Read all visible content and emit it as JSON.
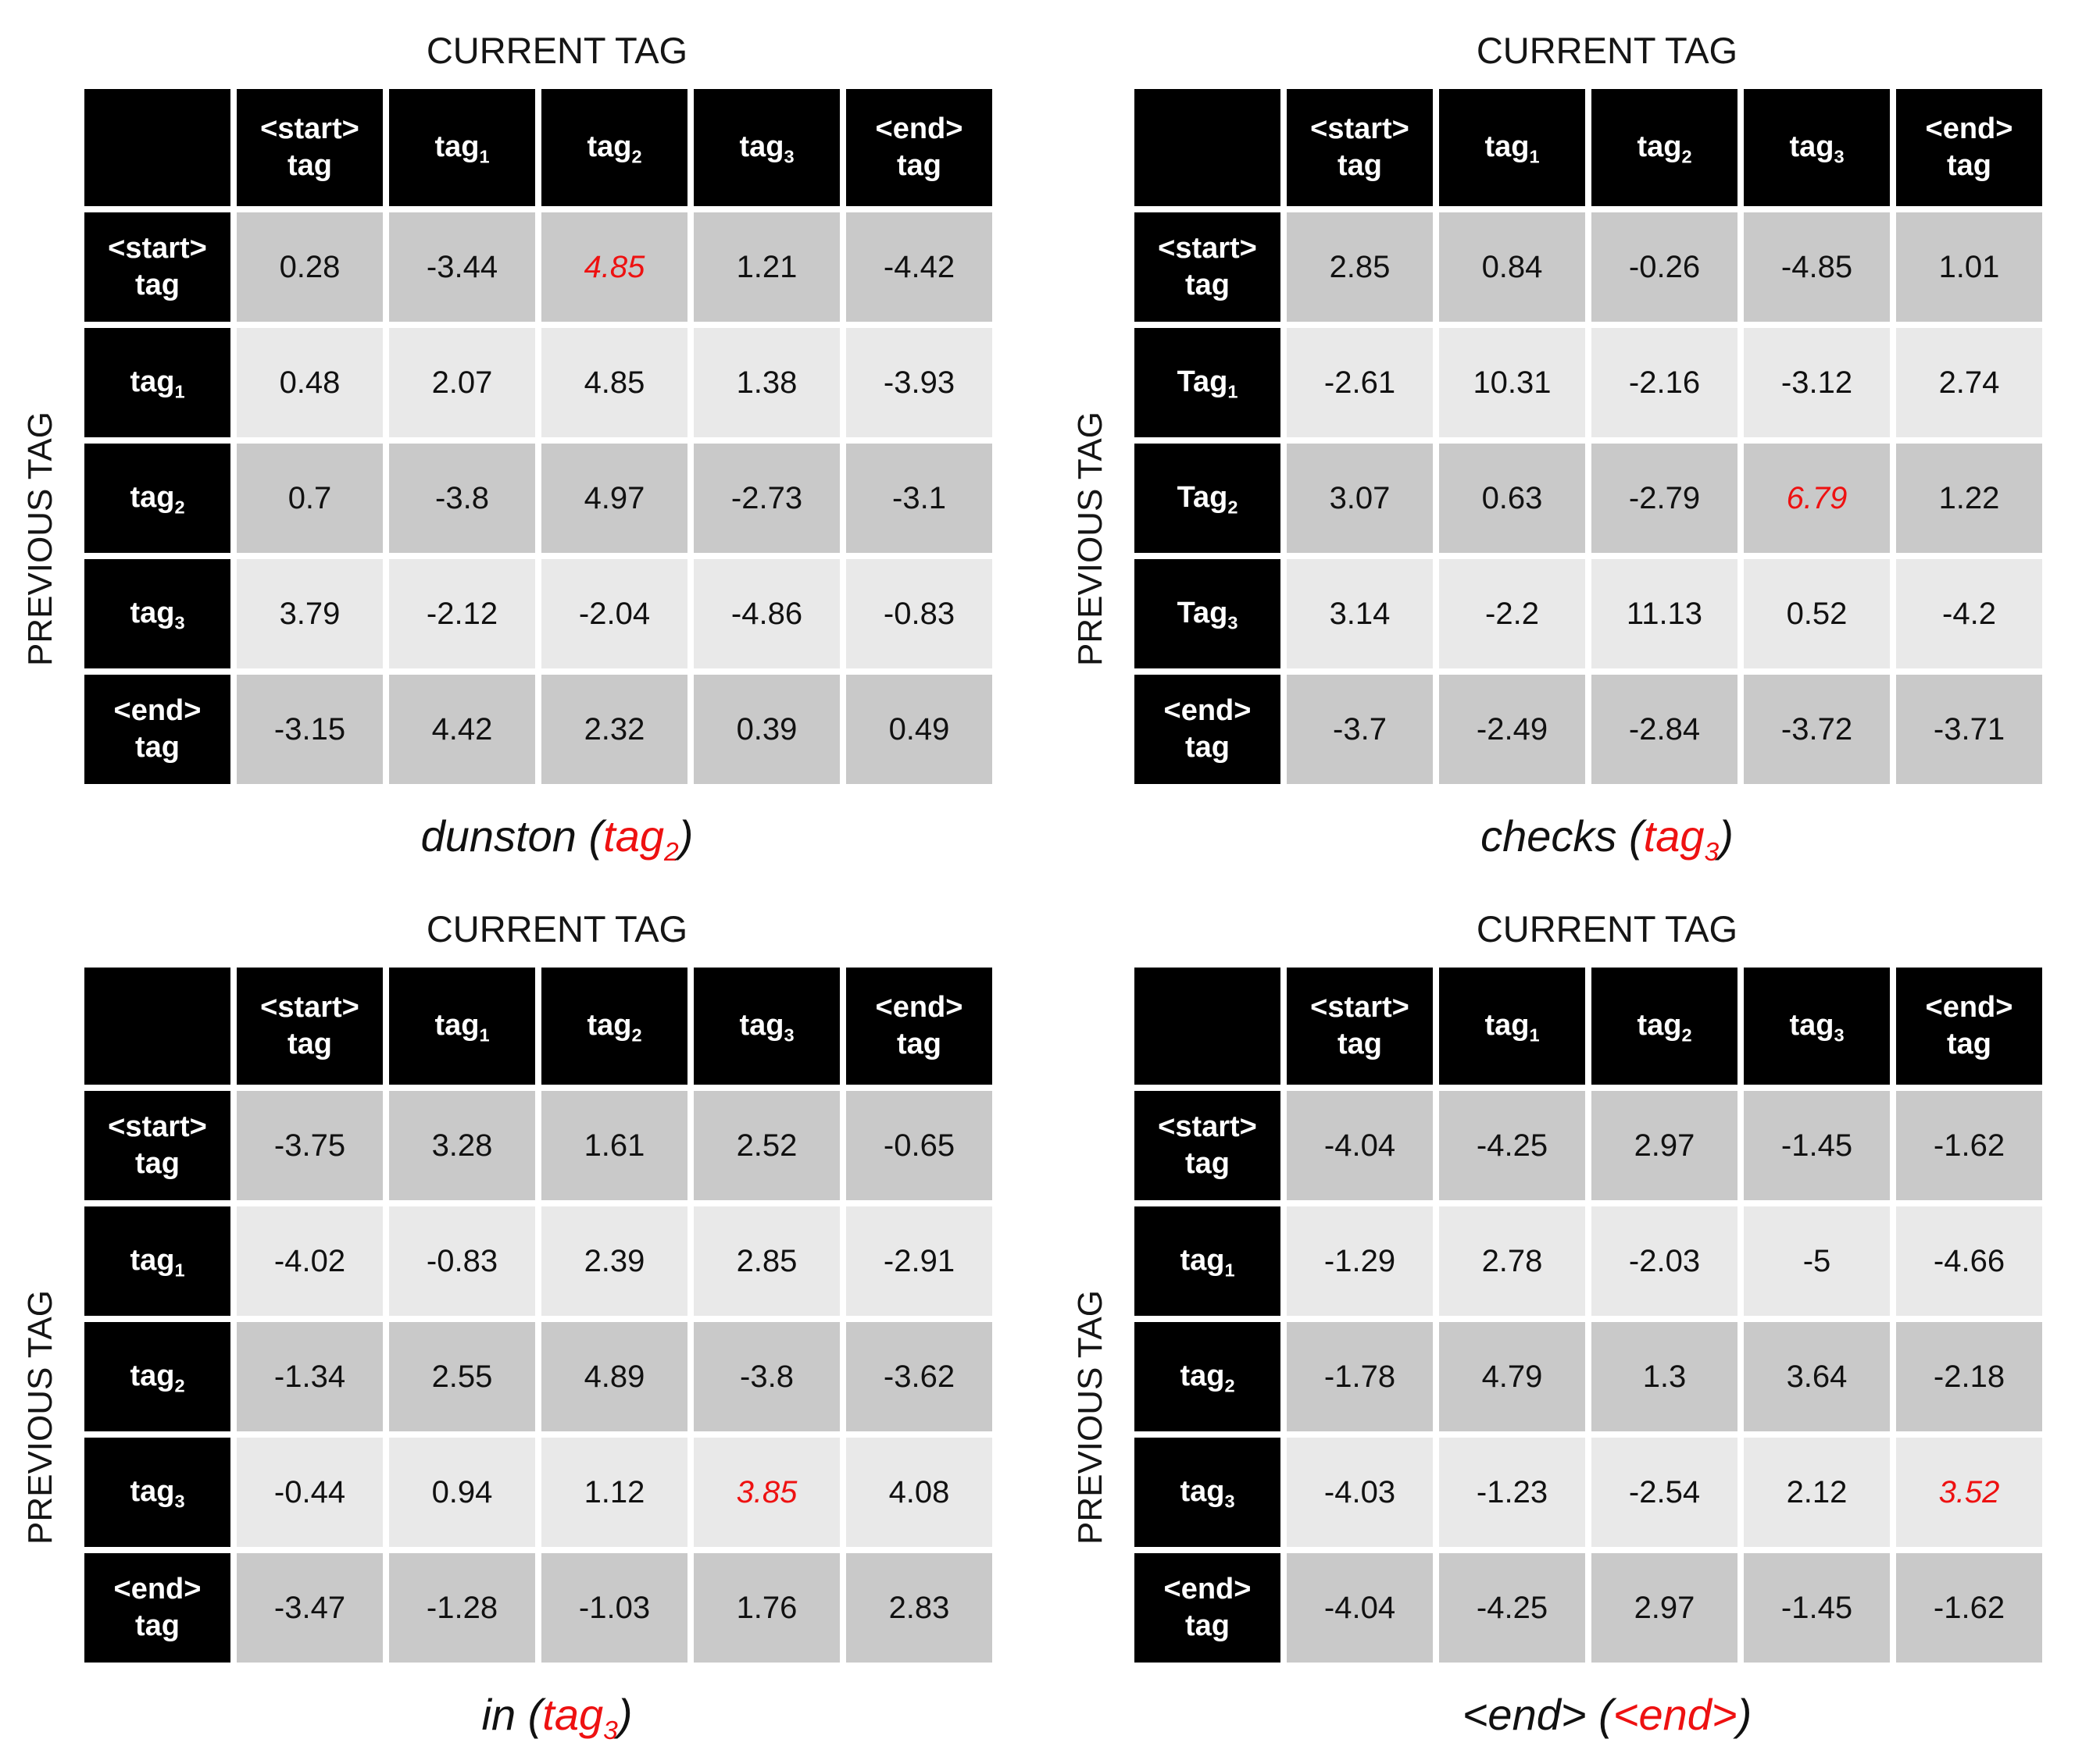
{
  "axis_labels": {
    "top": "CURRENT TAG",
    "left": "PREVIOUS TAG"
  },
  "colors": {
    "header_bg": "#000000",
    "header_text": "#ffffff",
    "row_dark": "#c9c9c9",
    "row_light": "#e9e9e9",
    "highlight_red": "#ee1111",
    "background": "#ffffff"
  },
  "col_headers": [
    {
      "main": "<start>",
      "sub": "",
      "second_line": "tag"
    },
    {
      "main": "tag",
      "sub": "1",
      "second_line": ""
    },
    {
      "main": "tag",
      "sub": "2",
      "second_line": ""
    },
    {
      "main": "tag",
      "sub": "3",
      "second_line": ""
    },
    {
      "main": "<end>",
      "sub": "",
      "second_line": "tag"
    }
  ],
  "tables": [
    {
      "caption": {
        "prefix": "dunston (",
        "red": "tag",
        "red_sub": "2",
        "suffix": ")"
      },
      "row_headers": [
        {
          "main": "<start>",
          "sub": "",
          "second_line": "tag"
        },
        {
          "main": "tag",
          "sub": "1",
          "second_line": ""
        },
        {
          "main": "tag",
          "sub": "2",
          "second_line": ""
        },
        {
          "main": "tag",
          "sub": "3",
          "second_line": ""
        },
        {
          "main": "<end>",
          "sub": "",
          "second_line": "tag"
        }
      ],
      "rows": [
        [
          "0.28",
          "-3.44",
          "4.85",
          "1.21",
          "-4.42"
        ],
        [
          "0.48",
          "2.07",
          "4.85",
          "1.38",
          "-3.93"
        ],
        [
          "0.7",
          "-3.8",
          "4.97",
          "-2.73",
          "-3.1"
        ],
        [
          "3.79",
          "-2.12",
          "-2.04",
          "-4.86",
          "-0.83"
        ],
        [
          "-3.15",
          "4.42",
          "2.32",
          "0.39",
          "0.49"
        ]
      ],
      "highlight": {
        "row": 0,
        "col": 2
      }
    },
    {
      "caption": {
        "prefix": "checks (",
        "red": "tag",
        "red_sub": "3",
        "suffix": ")"
      },
      "row_headers": [
        {
          "main": "<start>",
          "sub": "",
          "second_line": "tag"
        },
        {
          "main": "Tag",
          "sub": "1",
          "second_line": ""
        },
        {
          "main": "Tag",
          "sub": "2",
          "second_line": ""
        },
        {
          "main": "Tag",
          "sub": "3",
          "second_line": ""
        },
        {
          "main": "<end>",
          "sub": "",
          "second_line": "tag"
        }
      ],
      "rows": [
        [
          "2.85",
          "0.84",
          "-0.26",
          "-4.85",
          "1.01"
        ],
        [
          "-2.61",
          "10.31",
          "-2.16",
          "-3.12",
          "2.74"
        ],
        [
          "3.07",
          "0.63",
          "-2.79",
          "6.79",
          "1.22"
        ],
        [
          "3.14",
          "-2.2",
          "11.13",
          "0.52",
          "-4.2"
        ],
        [
          "-3.7",
          "-2.49",
          "-2.84",
          "-3.72",
          "-3.71"
        ]
      ],
      "highlight": {
        "row": 2,
        "col": 3
      }
    },
    {
      "caption": {
        "prefix": "in (",
        "red": "tag",
        "red_sub": "3",
        "suffix": ")"
      },
      "row_headers": [
        {
          "main": "<start>",
          "sub": "",
          "second_line": "tag"
        },
        {
          "main": "tag",
          "sub": "1",
          "second_line": ""
        },
        {
          "main": "tag",
          "sub": "2",
          "second_line": ""
        },
        {
          "main": "tag",
          "sub": "3",
          "second_line": ""
        },
        {
          "main": "<end>",
          "sub": "",
          "second_line": "tag"
        }
      ],
      "rows": [
        [
          "-3.75",
          "3.28",
          "1.61",
          "2.52",
          "-0.65"
        ],
        [
          "-4.02",
          "-0.83",
          "2.39",
          "2.85",
          "-2.91"
        ],
        [
          "-1.34",
          "2.55",
          "4.89",
          "-3.8",
          "-3.62"
        ],
        [
          "-0.44",
          "0.94",
          "1.12",
          "3.85",
          "4.08"
        ],
        [
          "-3.47",
          "-1.28",
          "-1.03",
          "1.76",
          "2.83"
        ]
      ],
      "highlight": {
        "row": 3,
        "col": 3
      }
    },
    {
      "caption": {
        "prefix": "<end> (",
        "red": "<end>",
        "red_sub": "",
        "suffix": ")"
      },
      "row_headers": [
        {
          "main": "<start>",
          "sub": "",
          "second_line": "tag"
        },
        {
          "main": "tag",
          "sub": "1",
          "second_line": ""
        },
        {
          "main": "tag",
          "sub": "2",
          "second_line": ""
        },
        {
          "main": "tag",
          "sub": "3",
          "second_line": ""
        },
        {
          "main": "<end>",
          "sub": "",
          "second_line": "tag"
        }
      ],
      "rows": [
        [
          "-4.04",
          "-4.25",
          "2.97",
          "-1.45",
          "-1.62"
        ],
        [
          "-1.29",
          "2.78",
          "-2.03",
          "-5",
          "-4.66"
        ],
        [
          "-1.78",
          "4.79",
          "1.3",
          "3.64",
          "-2.18"
        ],
        [
          "-4.03",
          "-1.23",
          "-2.54",
          "2.12",
          "3.52"
        ],
        [
          "-4.04",
          "-4.25",
          "2.97",
          "-1.45",
          "-1.62"
        ]
      ],
      "highlight": {
        "row": 3,
        "col": 4
      }
    }
  ]
}
